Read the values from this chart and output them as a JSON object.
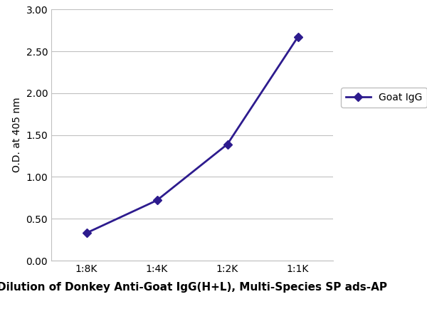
{
  "x_labels": [
    "1:8K",
    "1:4K",
    "1:2K",
    "1:1K"
  ],
  "x_values": [
    1,
    2,
    3,
    4
  ],
  "y_values": [
    0.33,
    0.72,
    1.39,
    2.67
  ],
  "line_color": "#2d1b8e",
  "marker": "D",
  "marker_size": 6,
  "marker_facecolor": "#2d1b8e",
  "line_width": 2.0,
  "ylabel": "O.D. at 405 nm",
  "xlabel": "Dilution of Donkey Anti-Goat IgG(H+L), Multi-Species SP ads-AP",
  "ylim": [
    0.0,
    3.0
  ],
  "yticks": [
    0.0,
    0.5,
    1.0,
    1.5,
    2.0,
    2.5,
    3.0
  ],
  "legend_label": "Goat IgG",
  "background_color": "#ffffff",
  "plot_bg_color": "#ffffff",
  "axis_label_fontsize": 10,
  "tick_fontsize": 10,
  "legend_fontsize": 10,
  "xlabel_fontsize": 11
}
